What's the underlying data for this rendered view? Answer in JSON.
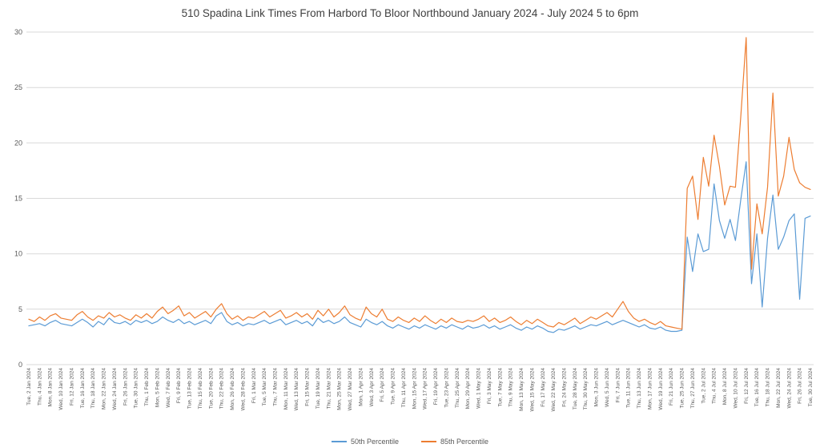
{
  "page": {
    "background": "#ffffff"
  },
  "chart_data": {
    "type": "line",
    "title": "510 Spadina Link Times From Harbord To Bloor Northbound January 2024 - July 2024 5 to 6pm",
    "xlabel": "",
    "ylabel": "",
    "ylim": [
      0,
      30
    ],
    "yticks": [
      0,
      5,
      10,
      15,
      20,
      25,
      30
    ],
    "grid": true,
    "grid_color": "#d9d9d9",
    "axis_color": "#595959",
    "title_color": "#404040",
    "legend_position": "bottom",
    "label_every": 2,
    "x": [
      "Tue, 2 Jan 2024",
      "Wed, 3 Jan 2024",
      "Thu, 4 Jan 2024",
      "Fri, 5 Jan 2024",
      "Mon, 8 Jan 2024",
      "Tue, 9 Jan 2024",
      "Wed, 10 Jan 2024",
      "Thu, 11 Jan 2024",
      "Fri, 12 Jan 2024",
      "Mon, 15 Jan 2024",
      "Tue, 16 Jan 2024",
      "Wed, 17 Jan 2024",
      "Thu, 18 Jan 2024",
      "Fri, 19 Jan 2024",
      "Mon, 22 Jan 2024",
      "Tue, 23 Jan 2024",
      "Wed, 24 Jan 2024",
      "Thu, 25 Jan 2024",
      "Fri, 26 Jan 2024",
      "Mon, 29 Jan 2024",
      "Tue, 30 Jan 2024",
      "Wed, 31 Jan 2024",
      "Thu, 1 Feb 2024",
      "Fri, 2 Feb 2024",
      "Mon, 5 Feb 2024",
      "Tue, 6 Feb 2024",
      "Wed, 7 Feb 2024",
      "Thu, 8 Feb 2024",
      "Fri, 9 Feb 2024",
      "Mon, 12 Feb 2024",
      "Tue, 13 Feb 2024",
      "Wed, 14 Feb 2024",
      "Thu, 15 Feb 2024",
      "Fri, 16 Feb 2024",
      "Tue, 20 Feb 2024",
      "Wed, 21 Feb 2024",
      "Thu, 22 Feb 2024",
      "Fri, 23 Feb 2024",
      "Mon, 26 Feb 2024",
      "Tue, 27 Feb 2024",
      "Wed, 28 Feb 2024",
      "Thu, 29 Feb 2024",
      "Fri, 1 Mar 2024",
      "Mon, 4 Mar 2024",
      "Tue, 5 Mar 2024",
      "Wed, 6 Mar 2024",
      "Thu, 7 Mar 2024",
      "Fri, 8 Mar 2024",
      "Mon, 11 Mar 2024",
      "Tue, 12 Mar 2024",
      "Wed, 13 Mar 2024",
      "Thu, 14 Mar 2024",
      "Fri, 15 Mar 2024",
      "Mon, 18 Mar 2024",
      "Tue, 19 Mar 2024",
      "Wed, 20 Mar 2024",
      "Thu, 21 Mar 2024",
      "Fri, 22 Mar 2024",
      "Mon, 25 Mar 2024",
      "Tue, 26 Mar 2024",
      "Wed, 27 Mar 2024",
      "Thu, 28 Mar 2024",
      "Mon, 1 Apr 2024",
      "Tue, 2 Apr 2024",
      "Wed, 3 Apr 2024",
      "Thu, 4 Apr 2024",
      "Fri, 5 Apr 2024",
      "Mon, 8 Apr 2024",
      "Tue, 9 Apr 2024",
      "Wed, 10 Apr 2024",
      "Thu, 11 Apr 2024",
      "Fri, 12 Apr 2024",
      "Mon, 15 Apr 2024",
      "Tue, 16 Apr 2024",
      "Wed, 17 Apr 2024",
      "Thu, 18 Apr 2024",
      "Fri, 19 Apr 2024",
      "Mon, 22 Apr 2024",
      "Tue, 23 Apr 2024",
      "Wed, 24 Apr 2024",
      "Thu, 25 Apr 2024",
      "Fri, 26 Apr 2024",
      "Mon, 29 Apr 2024",
      "Tue, 30 Apr 2024",
      "Wed, 1 May 2024",
      "Thu, 2 May 2024",
      "Fri, 3 May 2024",
      "Mon, 6 May 2024",
      "Tue, 7 May 2024",
      "Wed, 8 May 2024",
      "Thu, 9 May 2024",
      "Fri, 10 May 2024",
      "Mon, 13 May 2024",
      "Tue, 14 May 2024",
      "Wed, 15 May 2024",
      "Thu, 16 May 2024",
      "Fri, 17 May 2024",
      "Tue, 21 May 2024",
      "Wed, 22 May 2024",
      "Thu, 23 May 2024",
      "Fri, 24 May 2024",
      "Mon, 27 May 2024",
      "Tue, 28 May 2024",
      "Wed, 29 May 2024",
      "Thu, 30 May 2024",
      "Fri, 31 May 2024",
      "Mon, 3 Jun 2024",
      "Tue, 4 Jun 2024",
      "Wed, 5 Jun 2024",
      "Thu, 6 Jun 2024",
      "Fri, 7 Jun 2024",
      "Mon, 10 Jun 2024",
      "Tue, 11 Jun 2024",
      "Wed, 12 Jun 2024",
      "Thu, 13 Jun 2024",
      "Fri, 14 Jun 2024",
      "Mon, 17 Jun 2024",
      "Tue, 18 Jun 2024",
      "Wed, 19 Jun 2024",
      "Thu, 20 Jun 2024",
      "Fri, 21 Jun 2024",
      "Mon, 24 Jun 2024",
      "Tue, 25 Jun 2024",
      "Wed, 26 Jun 2024",
      "Thu, 27 Jun 2024",
      "Fri, 28 Jun 2024",
      "Tue, 2 Jul 2024",
      "Wed, 3 Jul 2024",
      "Thu, 4 Jul 2024",
      "Fri, 5 Jul 2024",
      "Mon, 8 Jul 2024",
      "Tue, 9 Jul 2024",
      "Wed, 10 Jul 2024",
      "Thu, 11 Jul 2024",
      "Fri, 12 Jul 2024",
      "Mon, 15 Jul 2024",
      "Tue, 16 Jul 2024",
      "Wed, 17 Jul 2024",
      "Thu, 18 Jul 2024",
      "Fri, 19 Jul 2024",
      "Mon, 22 Jul 2024",
      "Tue, 23 Jul 2024",
      "Wed, 24 Jul 2024",
      "Thu, 25 Jul 2024",
      "Fri, 26 Jul 2024",
      "Mon, 29 Jul 2024",
      "Tue, 30 Jul 2024"
    ],
    "series": [
      {
        "name": "50th Percentile",
        "color": "#5B9BD5",
        "values": [
          3.5,
          3.6,
          3.7,
          3.5,
          3.8,
          4.0,
          3.7,
          3.6,
          3.5,
          3.8,
          4.1,
          3.8,
          3.4,
          3.9,
          3.6,
          4.2,
          3.8,
          3.7,
          3.9,
          3.6,
          4.0,
          3.8,
          4.0,
          3.7,
          3.9,
          4.3,
          4.0,
          3.8,
          4.1,
          3.7,
          3.9,
          3.6,
          3.8,
          4.0,
          3.7,
          4.4,
          4.7,
          3.9,
          3.6,
          3.8,
          3.5,
          3.7,
          3.6,
          3.8,
          4.0,
          3.7,
          3.9,
          4.1,
          3.6,
          3.8,
          4.0,
          3.7,
          3.9,
          3.5,
          4.2,
          3.8,
          4.0,
          3.7,
          3.9,
          4.3,
          3.8,
          3.6,
          3.4,
          4.1,
          3.8,
          3.6,
          3.9,
          3.5,
          3.3,
          3.6,
          3.4,
          3.2,
          3.5,
          3.3,
          3.6,
          3.4,
          3.2,
          3.5,
          3.3,
          3.6,
          3.4,
          3.2,
          3.5,
          3.3,
          3.4,
          3.6,
          3.3,
          3.5,
          3.2,
          3.4,
          3.6,
          3.3,
          3.1,
          3.4,
          3.2,
          3.5,
          3.3,
          3.0,
          2.9,
          3.2,
          3.1,
          3.3,
          3.5,
          3.2,
          3.4,
          3.6,
          3.5,
          3.7,
          3.9,
          3.6,
          3.8,
          4.0,
          3.8,
          3.6,
          3.4,
          3.6,
          3.3,
          3.2,
          3.4,
          3.1,
          3.0,
          3.0,
          3.1,
          11.5,
          8.4,
          11.8,
          10.2,
          10.4,
          16.3,
          13.0,
          11.4,
          13.1,
          11.2,
          14.9,
          18.3,
          7.3,
          11.8,
          5.2,
          11.4,
          15.3,
          10.4,
          11.5,
          13.0,
          13.6,
          5.9,
          13.2,
          13.4
        ]
      },
      {
        "name": "85th Percentile",
        "color": "#ED7D31",
        "values": [
          4.1,
          3.9,
          4.3,
          4.0,
          4.4,
          4.6,
          4.2,
          4.1,
          4.0,
          4.5,
          4.8,
          4.3,
          4.0,
          4.4,
          4.2,
          4.7,
          4.3,
          4.5,
          4.2,
          4.0,
          4.5,
          4.2,
          4.6,
          4.2,
          4.8,
          5.2,
          4.6,
          4.9,
          5.3,
          4.4,
          4.7,
          4.2,
          4.5,
          4.8,
          4.3,
          5.0,
          5.5,
          4.6,
          4.1,
          4.4,
          4.0,
          4.3,
          4.2,
          4.5,
          4.8,
          4.3,
          4.6,
          4.9,
          4.2,
          4.4,
          4.7,
          4.3,
          4.6,
          4.1,
          4.9,
          4.4,
          5.0,
          4.3,
          4.7,
          5.3,
          4.5,
          4.2,
          4.0,
          5.2,
          4.6,
          4.3,
          5.0,
          4.1,
          3.9,
          4.3,
          4.0,
          3.8,
          4.2,
          3.9,
          4.4,
          4.0,
          3.7,
          4.1,
          3.8,
          4.2,
          3.9,
          3.8,
          4.0,
          3.9,
          4.1,
          4.4,
          3.9,
          4.2,
          3.8,
          4.0,
          4.3,
          3.9,
          3.6,
          4.0,
          3.7,
          4.1,
          3.8,
          3.5,
          3.4,
          3.8,
          3.6,
          3.9,
          4.2,
          3.7,
          4.0,
          4.3,
          4.1,
          4.4,
          4.7,
          4.3,
          5.0,
          5.7,
          4.8,
          4.2,
          3.9,
          4.1,
          3.8,
          3.6,
          3.9,
          3.5,
          3.4,
          3.3,
          3.2,
          15.9,
          17.0,
          13.1,
          18.7,
          16.1,
          20.7,
          17.9,
          14.4,
          16.1,
          16.0,
          22.4,
          29.5,
          8.6,
          14.5,
          11.8,
          16.0,
          24.5,
          15.2,
          17.0,
          20.5,
          17.6,
          16.4,
          16.0,
          15.8
        ]
      }
    ]
  }
}
